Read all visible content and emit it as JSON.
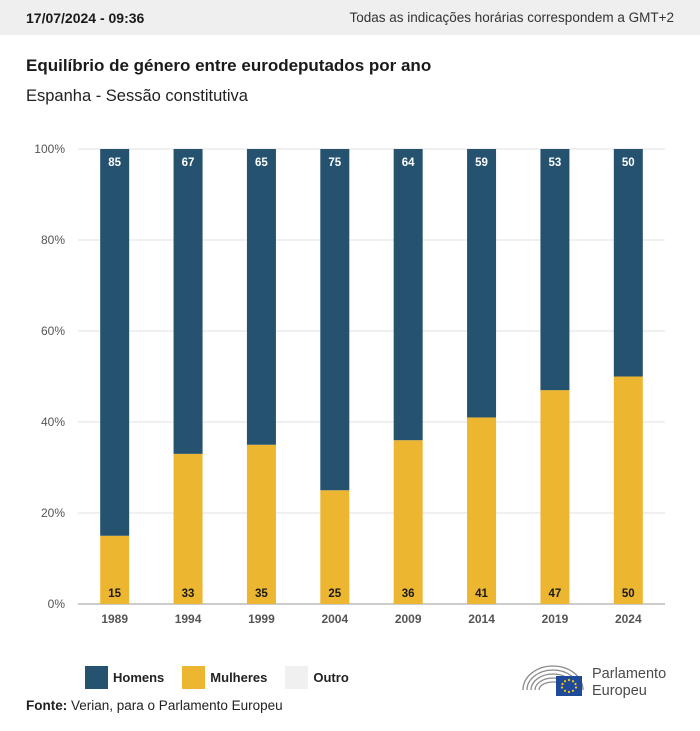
{
  "header": {
    "timestamp": "17/07/2024 - 09:36",
    "timezone_note": "Todas as indicações horárias correspondem a GMT+2"
  },
  "title": "Equilíbrio de género entre eurodeputados por ano",
  "subtitle": "Espanha - Sessão constitutiva",
  "colors": {
    "homens": "#25526f",
    "mulheres": "#ecb631",
    "outro": "#f0f0f0",
    "grid": "#e2e2e2",
    "axis_text": "#555555"
  },
  "chart_data": {
    "type": "bar",
    "stacked": true,
    "categories": [
      "1989",
      "1994",
      "1999",
      "2004",
      "2009",
      "2014",
      "2019",
      "2024"
    ],
    "series": [
      {
        "name": "Mulheres",
        "values": [
          15,
          33,
          35,
          25,
          36,
          41,
          47,
          50
        ]
      },
      {
        "name": "Homens",
        "values": [
          85,
          67,
          65,
          75,
          64,
          59,
          53,
          50
        ]
      },
      {
        "name": "Outro",
        "values": [
          0,
          0,
          0,
          0,
          0,
          0,
          0,
          0
        ]
      }
    ],
    "y_ticks": [
      "0%",
      "20%",
      "40%",
      "60%",
      "80%",
      "100%"
    ],
    "ylim": [
      0,
      100
    ],
    "grid": true,
    "legend_position": "bottom-left"
  },
  "legend": {
    "homens": "Homens",
    "mulheres": "Mulheres",
    "outro": "Outro"
  },
  "source": {
    "label": "Fonte:",
    "text": " Verian, para o Parlamento Europeu"
  },
  "logo": {
    "line1": "Parlamento",
    "line2": "Europeu"
  }
}
